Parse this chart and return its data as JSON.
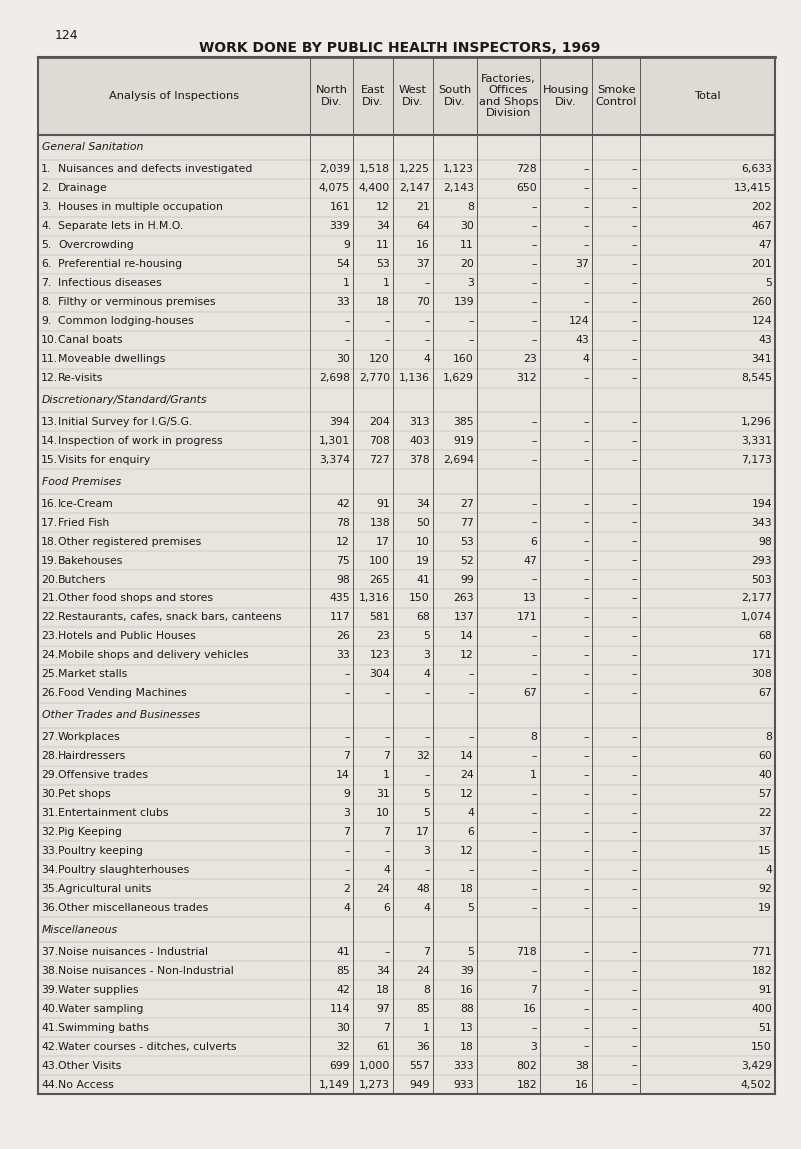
{
  "title": "WORK DONE BY PUBLIC HEALTH INSPECTORS, 1969",
  "page_num": "124",
  "col_headers": [
    "Analysis of Inspections",
    "North\nDiv.",
    "East\nDiv.",
    "West\nDiv.",
    "South\nDiv.",
    "Factories,\nOffices\nand Shops\nDivision",
    "Housing\nDiv.",
    "Smoke\nControl",
    "Total"
  ],
  "sections": [
    {
      "name": "General Sanitation",
      "rows": [
        [
          "1.",
          "Nuisances and defects investigated",
          "2,039",
          "1,518",
          "1,225",
          "1,123",
          "728",
          "–",
          "–",
          "6,633"
        ],
        [
          "2.",
          "Drainage",
          "4,075",
          "4,400",
          "2,147",
          "2,143",
          "650",
          "–",
          "–",
          "13,415"
        ],
        [
          "3.",
          "Houses in multiple occupation",
          "161",
          "12",
          "21",
          "8",
          "–",
          "–",
          "–",
          "202"
        ],
        [
          "4.",
          "Separate lets in H.M.O.",
          "339",
          "34",
          "64",
          "30",
          "–",
          "–",
          "–",
          "467"
        ],
        [
          "5.",
          "Overcrowding",
          "9",
          "11",
          "16",
          "11",
          "–",
          "–",
          "–",
          "47"
        ],
        [
          "6.",
          "Preferential re-housing",
          "54",
          "53",
          "37",
          "20",
          "–",
          "37",
          "–",
          "201"
        ],
        [
          "7.",
          "Infectious diseases",
          "1",
          "1",
          "–",
          "3",
          "–",
          "–",
          "–",
          "5"
        ],
        [
          "8.",
          "Filthy or verminous premises",
          "33",
          "18",
          "70",
          "139",
          "–",
          "–",
          "–",
          "260"
        ],
        [
          "9.",
          "Common lodging-houses",
          "–",
          "–",
          "–",
          "–",
          "–",
          "124",
          "–",
          "124"
        ],
        [
          "10.",
          "Canal boats",
          "–",
          "–",
          "–",
          "–",
          "–",
          "43",
          "–",
          "43"
        ],
        [
          "11.",
          "Moveable dwellings",
          "30",
          "120",
          "4",
          "160",
          "23",
          "4",
          "–",
          "341"
        ],
        [
          "12.",
          "Re-visits",
          "2,698",
          "2,770",
          "1,136",
          "1,629",
          "312",
          "–",
          "–",
          "8,545"
        ]
      ]
    },
    {
      "name": "Discretionary/Standard/Grants",
      "rows": [
        [
          "13.",
          "Initial Survey for I.G/S.G.",
          "394",
          "204",
          "313",
          "385",
          "–",
          "–",
          "–",
          "1,296"
        ],
        [
          "14.",
          "Inspection of work in progress",
          "1,301",
          "708",
          "403",
          "919",
          "–",
          "–",
          "–",
          "3,331"
        ],
        [
          "15.",
          "Visits for enquiry",
          "3,374",
          "727",
          "378",
          "2,694",
          "–",
          "–",
          "–",
          "7,173"
        ]
      ]
    },
    {
      "name": "Food Premises",
      "rows": [
        [
          "16.",
          "Ice-Cream",
          "42",
          "91",
          "34",
          "27",
          "–",
          "–",
          "–",
          "194"
        ],
        [
          "17.",
          "Fried Fish",
          "78",
          "138",
          "50",
          "77",
          "–",
          "–",
          "–",
          "343"
        ],
        [
          "18.",
          "Other registered premises",
          "12",
          "17",
          "10",
          "53",
          "6",
          "–",
          "–",
          "98"
        ],
        [
          "19.",
          "Bakehouses",
          "75",
          "100",
          "19",
          "52",
          "47",
          "–",
          "–",
          "293"
        ],
        [
          "20.",
          "Butchers",
          "98",
          "265",
          "41",
          "99",
          "–",
          "–",
          "–",
          "503"
        ],
        [
          "21.",
          "Other food shops and stores",
          "435",
          "1,316",
          "150",
          "263",
          "13",
          "–",
          "–",
          "2,177"
        ],
        [
          "22.",
          "Restaurants, cafes, snack bars, canteens",
          "117",
          "581",
          "68",
          "137",
          "171",
          "–",
          "–",
          "1,074"
        ],
        [
          "23.",
          "Hotels and Public Houses",
          "26",
          "23",
          "5",
          "14",
          "–",
          "–",
          "–",
          "68"
        ],
        [
          "24.",
          "Mobile shops and delivery vehicles",
          "33",
          "123",
          "3",
          "12",
          "–",
          "–",
          "–",
          "171"
        ],
        [
          "25.",
          "Market stalls",
          "–",
          "304",
          "4",
          "–",
          "–",
          "–",
          "–",
          "308"
        ],
        [
          "26.",
          "Food Vending Machines",
          "–",
          "–",
          "–",
          "–",
          "67",
          "–",
          "–",
          "67"
        ]
      ]
    },
    {
      "name": "Other Trades and Businesses",
      "rows": [
        [
          "27.",
          "Workplaces",
          "–",
          "–",
          "–",
          "–",
          "8",
          "–",
          "–",
          "8"
        ],
        [
          "28.",
          "Hairdressers",
          "7",
          "7",
          "32",
          "14",
          "–",
          "–",
          "–",
          "60"
        ],
        [
          "29.",
          "Offensive trades",
          "14",
          "1",
          "–",
          "24",
          "1",
          "–",
          "–",
          "40"
        ],
        [
          "30.",
          "Pet shops",
          "9",
          "31",
          "5",
          "12",
          "–",
          "–",
          "–",
          "57"
        ],
        [
          "31.",
          "Entertainment clubs",
          "3",
          "10",
          "5",
          "4",
          "–",
          "–",
          "–",
          "22"
        ],
        [
          "32.",
          "Pig Keeping",
          "7",
          "7",
          "17",
          "6",
          "–",
          "–",
          "–",
          "37"
        ],
        [
          "33.",
          "Poultry keeping",
          "–",
          "–",
          "3",
          "12",
          "–",
          "–",
          "–",
          "15"
        ],
        [
          "34.",
          "Poultry slaughterhouses",
          "–",
          "4",
          "–",
          "–",
          "–",
          "–",
          "–",
          "4"
        ],
        [
          "35.",
          "Agricultural units",
          "2",
          "24",
          "48",
          "18",
          "–",
          "–",
          "–",
          "92"
        ],
        [
          "36.",
          "Other miscellaneous trades",
          "4",
          "6",
          "4",
          "5",
          "–",
          "–",
          "–",
          "19"
        ]
      ]
    },
    {
      "name": "Miscellaneous",
      "rows": [
        [
          "37.",
          "Noise nuisances - Industrial",
          "41",
          "–",
          "7",
          "5",
          "718",
          "–",
          "–",
          "771"
        ],
        [
          "38.",
          "Noise nuisances - Non-Industrial",
          "85",
          "34",
          "24",
          "39",
          "–",
          "–",
          "–",
          "182"
        ],
        [
          "39.",
          "Water supplies",
          "42",
          "18",
          "8",
          "16",
          "7",
          "–",
          "–",
          "91"
        ],
        [
          "40.",
          "Water sampling",
          "114",
          "97",
          "85",
          "88",
          "16",
          "–",
          "–",
          "400"
        ],
        [
          "41.",
          "Swimming baths",
          "30",
          "7",
          "1",
          "13",
          "–",
          "–",
          "–",
          "51"
        ],
        [
          "42.",
          "Water courses - ditches, culverts",
          "32",
          "61",
          "36",
          "18",
          "3",
          "–",
          "–",
          "150"
        ],
        [
          "43.",
          "Other Visits",
          "699",
          "1,000",
          "557",
          "333",
          "802",
          "38",
          "–",
          "3,429"
        ],
        [
          "44.",
          "No Access",
          "1,149",
          "1,273",
          "949",
          "933",
          "182",
          "16",
          "–",
          "4,502"
        ]
      ]
    }
  ],
  "bg_color": "#f0ede8",
  "table_bg": "#e8e4de",
  "header_bg": "#dedad4",
  "text_color": "#1a1a1a",
  "border_color": "#555555",
  "section_header_color": "#2a2a2a"
}
